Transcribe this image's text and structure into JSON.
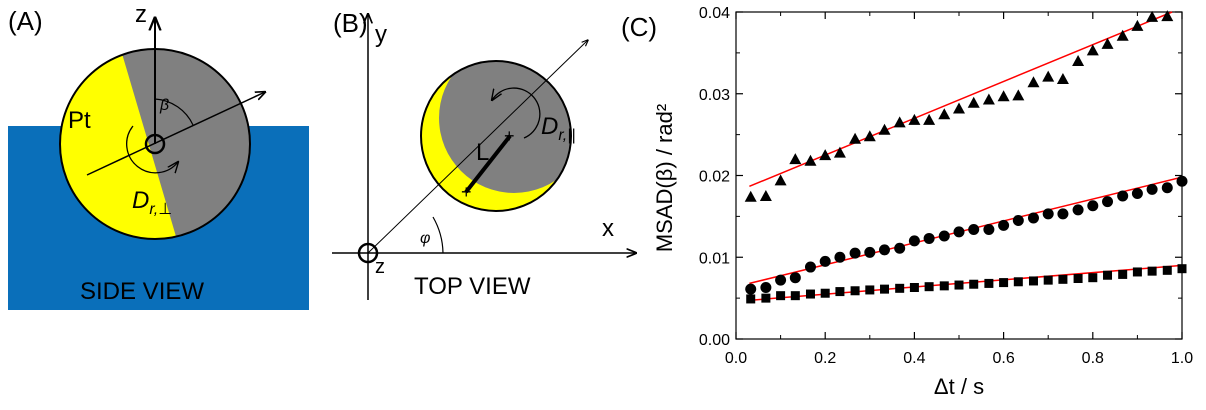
{
  "panels": {
    "a": {
      "label": "(A)",
      "axis_z": "z",
      "material": "Pt",
      "angle": "β",
      "rotation_symbol": "D",
      "rotation_subscript": "r,⊥",
      "caption": "SIDE VIEW",
      "colors": {
        "water": "#0a6fba",
        "pt": "#ffff00",
        "dark": "#808080"
      }
    },
    "b": {
      "label": "(B)",
      "axis_y": "y",
      "axis_x": "x",
      "axis_z": "z",
      "angle": "φ",
      "length": "L",
      "rotation_symbol": "D",
      "rotation_subscript": "r,||",
      "caption": "TOP VIEW",
      "colors": {
        "pt": "#ffff00",
        "dark": "#808080"
      }
    },
    "c": {
      "label": "(C)"
    }
  },
  "chart_data": {
    "type": "scatter",
    "title": "",
    "xlabel": "Δt / s",
    "ylabel": "MSAD(β) / rad²",
    "xlim": [
      0.0,
      1.0
    ],
    "ylim": [
      0.0,
      0.04
    ],
    "xticks": [
      "0.0",
      "0.2",
      "0.4",
      "0.6",
      "0.8",
      "1.0"
    ],
    "yticks": [
      "0.00",
      "0.01",
      "0.02",
      "0.03",
      "0.04"
    ],
    "grid": false,
    "fit_color": "#ff0000",
    "series": [
      {
        "marker": "triangle",
        "x": [
          0.033,
          0.067,
          0.1,
          0.133,
          0.167,
          0.2,
          0.233,
          0.267,
          0.3,
          0.333,
          0.367,
          0.4,
          0.433,
          0.467,
          0.5,
          0.533,
          0.567,
          0.6,
          0.633,
          0.667,
          0.7,
          0.733,
          0.767,
          0.8,
          0.833,
          0.867,
          0.9,
          0.933,
          0.967
        ],
        "y": [
          0.0174,
          0.0175,
          0.0194,
          0.022,
          0.0218,
          0.0225,
          0.0228,
          0.0245,
          0.0248,
          0.0256,
          0.0265,
          0.0268,
          0.0268,
          0.0275,
          0.0282,
          0.0289,
          0.0293,
          0.0297,
          0.0298,
          0.0314,
          0.0321,
          0.0318,
          0.034,
          0.0353,
          0.0361,
          0.0371,
          0.0383,
          0.0394,
          0.0395
        ],
        "fit": [
          0.018,
          0.0405
        ]
      },
      {
        "marker": "circle",
        "x": [
          0.033,
          0.067,
          0.1,
          0.133,
          0.167,
          0.2,
          0.233,
          0.267,
          0.3,
          0.333,
          0.367,
          0.4,
          0.433,
          0.467,
          0.5,
          0.533,
          0.567,
          0.6,
          0.633,
          0.667,
          0.7,
          0.733,
          0.767,
          0.8,
          0.833,
          0.867,
          0.9,
          0.933,
          0.967,
          1.0
        ],
        "y": [
          0.0061,
          0.0063,
          0.0072,
          0.0075,
          0.0088,
          0.0095,
          0.01,
          0.0105,
          0.0106,
          0.0109,
          0.0111,
          0.012,
          0.0123,
          0.0126,
          0.0131,
          0.0134,
          0.0134,
          0.0139,
          0.0145,
          0.0148,
          0.0153,
          0.0153,
          0.0158,
          0.0163,
          0.0168,
          0.0175,
          0.0178,
          0.0183,
          0.0185,
          0.0193
        ],
        "fit": [
          0.0064,
          0.0198
        ]
      },
      {
        "marker": "square",
        "x": [
          0.033,
          0.067,
          0.1,
          0.133,
          0.167,
          0.2,
          0.233,
          0.267,
          0.3,
          0.333,
          0.367,
          0.4,
          0.433,
          0.467,
          0.5,
          0.533,
          0.567,
          0.6,
          0.633,
          0.667,
          0.7,
          0.733,
          0.767,
          0.8,
          0.833,
          0.867,
          0.9,
          0.933,
          0.967,
          1.0
        ],
        "y": [
          0.0049,
          0.005,
          0.0053,
          0.0053,
          0.0055,
          0.0056,
          0.0058,
          0.0059,
          0.006,
          0.0061,
          0.0062,
          0.0063,
          0.0064,
          0.0065,
          0.0066,
          0.0067,
          0.0068,
          0.0069,
          0.007,
          0.0071,
          0.0072,
          0.0073,
          0.0074,
          0.0075,
          0.0078,
          0.0079,
          0.0082,
          0.0083,
          0.0084,
          0.0086
        ],
        "fit": [
          0.0046,
          0.009
        ]
      }
    ]
  }
}
